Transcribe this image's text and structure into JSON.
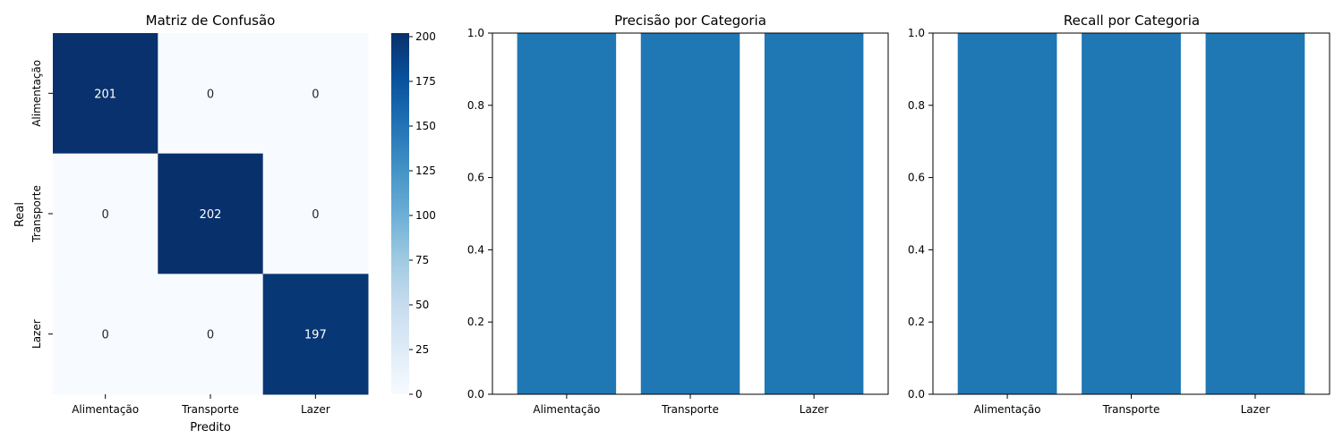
{
  "chart_data": [
    {
      "type": "heatmap",
      "title": "Matriz de Confusão",
      "xlabel": "Predito",
      "ylabel": "Real",
      "x_categories": [
        "Alimentação",
        "Transporte",
        "Lazer"
      ],
      "y_categories": [
        "Alimentação",
        "Transporte",
        "Lazer"
      ],
      "values": [
        [
          201,
          0,
          0
        ],
        [
          0,
          202,
          0
        ],
        [
          0,
          0,
          197
        ]
      ],
      "colormap": "Blues",
      "colorbar": {
        "min": 0,
        "max": 202,
        "ticks": [
          0,
          25,
          50,
          75,
          100,
          125,
          150,
          175,
          200
        ]
      }
    },
    {
      "type": "bar",
      "title": "Precisão por Categoria",
      "categories": [
        "Alimentação",
        "Transporte",
        "Lazer"
      ],
      "values": [
        1.0,
        1.0,
        1.0
      ],
      "ylim": [
        0,
        1.0
      ],
      "yticks": [
        0.0,
        0.2,
        0.4,
        0.6,
        0.8,
        1.0
      ],
      "color": "#1f77b4"
    },
    {
      "type": "bar",
      "title": "Recall por Categoria",
      "categories": [
        "Alimentação",
        "Transporte",
        "Lazer"
      ],
      "values": [
        1.0,
        1.0,
        1.0
      ],
      "ylim": [
        0,
        1.0
      ],
      "yticks": [
        0.0,
        0.2,
        0.4,
        0.6,
        0.8,
        1.0
      ],
      "color": "#1f77b4"
    }
  ]
}
